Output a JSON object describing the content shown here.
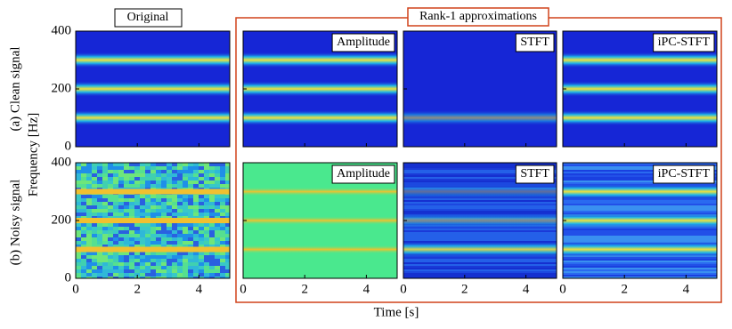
{
  "chart_data": {
    "type": "spectrogram",
    "title": "Rank-1 approximations",
    "column_title": "Original",
    "panel_labels": [
      "Amplitude",
      "STFT",
      "iPC-STFT"
    ],
    "row_labels": [
      "(a) Clean signal",
      "(b) Noisy signal"
    ],
    "xlabel": "Time [s]",
    "ylabel": "Frequency [Hz]",
    "xlim": [
      0,
      5
    ],
    "xticks": [
      0,
      2,
      4
    ],
    "ylim": [
      0,
      400
    ],
    "yticks": [
      0,
      200,
      400
    ]
  }
}
